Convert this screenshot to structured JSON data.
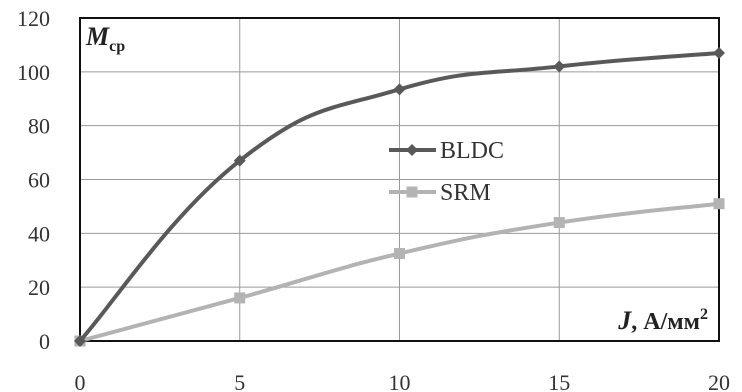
{
  "chart_data": {
    "type": "line",
    "x": [
      0,
      5,
      10,
      15,
      20
    ],
    "xlim": [
      0,
      20
    ],
    "ylim": [
      0,
      120
    ],
    "xticks": [
      "0",
      "5",
      "10",
      "15",
      "20"
    ],
    "yticks": [
      "0",
      "20",
      "40",
      "60",
      "80",
      "100",
      "120"
    ],
    "ylabel": {
      "main": "M",
      "sub": "ср"
    },
    "xlabel": {
      "main": "J",
      "unit": ", А/мм",
      "sup": "2"
    },
    "grid": true,
    "legend_position": "center",
    "series": [
      {
        "name": "BLDC",
        "color": "#595959",
        "marker": "diamond",
        "values": [
          0,
          67,
          93.5,
          102,
          107
        ]
      },
      {
        "name": "SRM",
        "color": "#b3b3b3",
        "marker": "square",
        "values": [
          0,
          16,
          32.5,
          44,
          51
        ]
      }
    ]
  }
}
